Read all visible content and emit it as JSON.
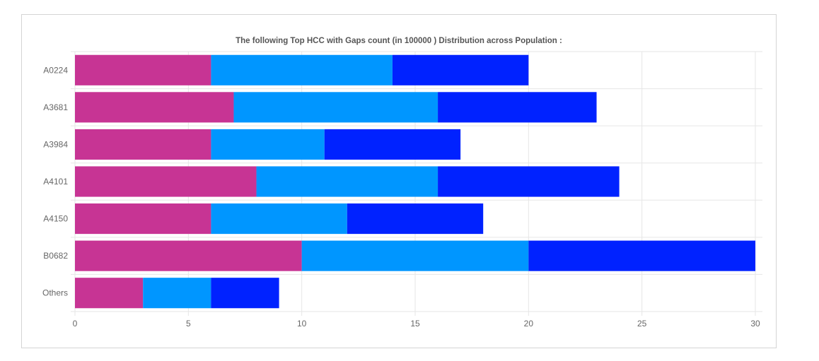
{
  "chart_data": {
    "type": "bar",
    "orientation": "horizontal",
    "stacked": true,
    "title": "The following Top HCC with Gaps count (in 100000 ) Distribution across Population :",
    "categories": [
      "A0224",
      "A3681",
      "A3984",
      "A4101",
      "A4150",
      "B0682",
      "Others"
    ],
    "series": [
      {
        "color": "#c73494",
        "values": [
          6,
          7,
          6,
          8,
          6,
          10,
          3
        ]
      },
      {
        "color": "#0096ff",
        "values": [
          8,
          9,
          5,
          8,
          6,
          10,
          3
        ]
      },
      {
        "color": "#0022ff",
        "values": [
          6,
          7,
          6,
          8,
          6,
          10,
          3
        ]
      }
    ],
    "xlim": [
      0,
      30
    ],
    "xticks": [
      "0",
      "5",
      "10",
      "15",
      "20",
      "25",
      "30"
    ],
    "grid": true,
    "legend": "none"
  }
}
